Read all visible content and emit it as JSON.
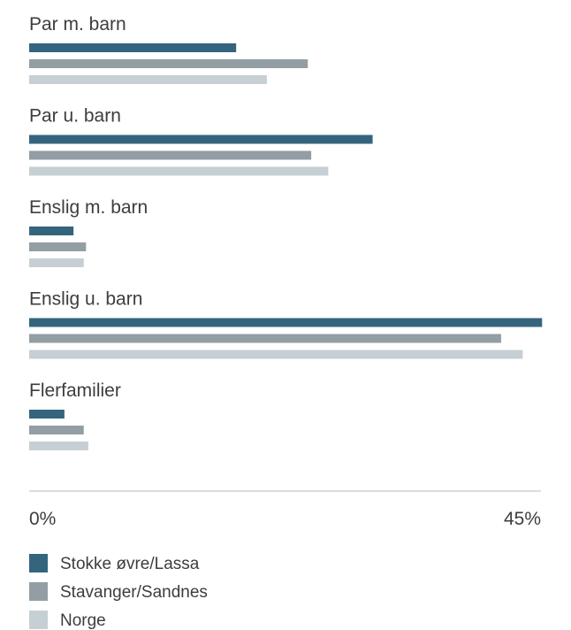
{
  "chart_data": {
    "type": "bar",
    "orientation": "horizontal",
    "categories": [
      "Par m. barn",
      "Par u. barn",
      "Enslig m. barn",
      "Enslig u. barn",
      "Flerfamilier"
    ],
    "series": [
      {
        "name": "Stokke øvre/Lassa",
        "color": "#35647e",
        "values": [
          18.2,
          30.2,
          3.9,
          45.1,
          3.1
        ]
      },
      {
        "name": "Stavanger/Sandnes",
        "color": "#929ea3",
        "values": [
          24.5,
          24.8,
          5.0,
          41.5,
          4.8
        ]
      },
      {
        "name": "Norge",
        "color": "#c6cfd4",
        "values": [
          20.9,
          26.3,
          4.8,
          43.4,
          5.2
        ]
      }
    ],
    "xlim": [
      0,
      45
    ],
    "ticks": [
      "0%",
      "45%"
    ],
    "legend_position": "bottom",
    "grid": false
  }
}
